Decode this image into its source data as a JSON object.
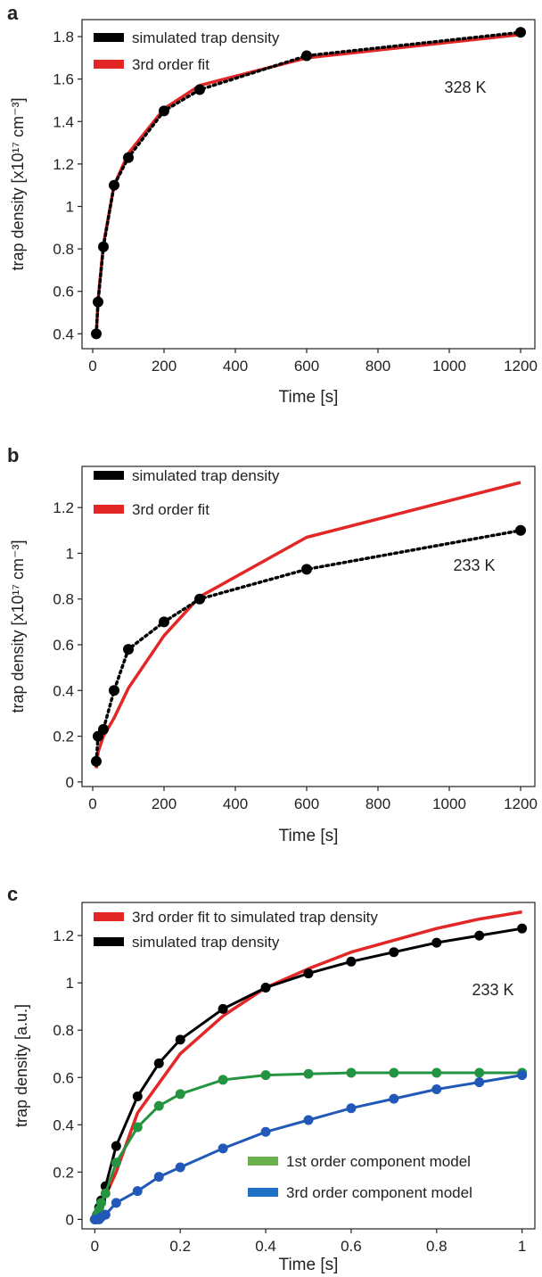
{
  "chart_data": [
    {
      "panel_label": "a",
      "type": "line",
      "xlabel": "Time [s]",
      "ylabel": "trap density [x10¹⁷ cm⁻³]",
      "annotation": "328 K",
      "xlim": [
        -30,
        1240
      ],
      "ylim": [
        0.33,
        1.88
      ],
      "xticks": [
        0,
        200,
        400,
        600,
        800,
        1000,
        1200
      ],
      "xtick_labels": [
        "0",
        "200",
        "400",
        "600",
        "800",
        "1000",
        "1200"
      ],
      "yticks": [
        0.4,
        0.6,
        0.8,
        1.0,
        1.2,
        1.4,
        1.6,
        1.8
      ],
      "ytick_labels": [
        "0.4",
        "0.6",
        "0.8",
        "1",
        "1.2",
        "1.4",
        "1.6",
        "1.8"
      ],
      "legend_position": "top-left",
      "series": [
        {
          "name": "simulated trap density",
          "color": "#000000",
          "style": "dotted-markers",
          "x": [
            10,
            15,
            30,
            60,
            100,
            200,
            300,
            600,
            1200
          ],
          "y": [
            0.4,
            0.55,
            0.81,
            1.1,
            1.23,
            1.45,
            1.55,
            1.71,
            1.82
          ]
        },
        {
          "name": "3rd order fit",
          "color": "#e32626",
          "style": "solid",
          "x": [
            10,
            15,
            30,
            60,
            100,
            200,
            300,
            600,
            1200
          ],
          "y": [
            0.39,
            0.56,
            0.82,
            1.1,
            1.25,
            1.46,
            1.57,
            1.7,
            1.81
          ]
        }
      ]
    },
    {
      "panel_label": "b",
      "type": "line",
      "xlabel": "Time [s]",
      "ylabel": "trap density [x10¹⁷ cm⁻³]",
      "annotation": "233 K",
      "xlim": [
        -30,
        1240
      ],
      "ylim": [
        -0.02,
        1.38
      ],
      "xticks": [
        0,
        200,
        400,
        600,
        800,
        1000,
        1200
      ],
      "xtick_labels": [
        "0",
        "200",
        "400",
        "600",
        "800",
        "1000",
        "1200"
      ],
      "yticks": [
        0,
        0.2,
        0.4,
        0.6,
        0.8,
        1.0,
        1.2
      ],
      "ytick_labels": [
        "0",
        "0.2",
        "0.4",
        "0.6",
        "0.8",
        "1",
        "1.2"
      ],
      "legend_position": "top-left",
      "series": [
        {
          "name": "simulated trap density",
          "color": "#000000",
          "style": "dotted-markers",
          "x": [
            10,
            15,
            30,
            60,
            100,
            200,
            300,
            600,
            1200
          ],
          "y": [
            0.09,
            0.2,
            0.23,
            0.4,
            0.58,
            0.7,
            0.8,
            0.93,
            1.1
          ]
        },
        {
          "name": "3rd order fit",
          "color": "#e32626",
          "style": "solid",
          "x": [
            10,
            15,
            30,
            60,
            100,
            200,
            300,
            600,
            1200
          ],
          "y": [
            0.06,
            0.13,
            0.2,
            0.28,
            0.41,
            0.64,
            0.81,
            1.07,
            1.31
          ]
        }
      ]
    },
    {
      "panel_label": "c",
      "type": "line",
      "xlabel": "Time [s]",
      "ylabel": "trap density [a.u.]",
      "annotation": "233 K",
      "xlim": [
        -0.03,
        1.03
      ],
      "ylim": [
        -0.04,
        1.34
      ],
      "xticks": [
        0,
        0.2,
        0.4,
        0.6,
        0.8,
        1.0
      ],
      "xtick_labels": [
        "0",
        "0.2",
        "0.4",
        "0.6",
        "0.8",
        "1"
      ],
      "yticks": [
        0,
        0.2,
        0.4,
        0.6,
        0.8,
        1.0,
        1.2
      ],
      "ytick_labels": [
        "0",
        "0.2",
        "0.4",
        "0.6",
        "0.8",
        "1",
        "1.2"
      ],
      "legend_position": "top-left and bottom-right",
      "series": [
        {
          "name": "3rd order fit to simulated trap density",
          "color": "#e32626",
          "style": "solid",
          "x": [
            0,
            0.01,
            0.025,
            0.05,
            0.1,
            0.2,
            0.3,
            0.4,
            0.5,
            0.6,
            0.7,
            0.8,
            0.9,
            1.0
          ],
          "y": [
            0,
            0.04,
            0.1,
            0.2,
            0.45,
            0.7,
            0.86,
            0.98,
            1.06,
            1.13,
            1.18,
            1.23,
            1.27,
            1.3
          ]
        },
        {
          "name": "simulated trap density",
          "color": "#000000",
          "style": "solid-markers",
          "x": [
            0,
            0.005,
            0.01,
            0.015,
            0.025,
            0.05,
            0.1,
            0.15,
            0.2,
            0.3,
            0.4,
            0.5,
            0.6,
            0.7,
            0.8,
            0.9,
            1.0
          ],
          "y": [
            0,
            0.02,
            0.05,
            0.08,
            0.14,
            0.31,
            0.52,
            0.66,
            0.76,
            0.89,
            0.98,
            1.04,
            1.09,
            1.13,
            1.17,
            1.2,
            1.23
          ]
        },
        {
          "name": "1st order component model",
          "color": "#259441",
          "legend_color": "#6ab04c",
          "style": "solid-markers",
          "x": [
            0,
            0.005,
            0.01,
            0.015,
            0.025,
            0.05,
            0.1,
            0.15,
            0.2,
            0.3,
            0.4,
            0.5,
            0.6,
            0.7,
            0.8,
            0.9,
            1.0
          ],
          "y": [
            0,
            0.02,
            0.04,
            0.07,
            0.11,
            0.24,
            0.39,
            0.48,
            0.53,
            0.59,
            0.61,
            0.615,
            0.62,
            0.62,
            0.62,
            0.62,
            0.62
          ]
        },
        {
          "name": "3rd order component model",
          "color": "#2259b8",
          "legend_color": "#1f6fc4",
          "style": "solid-markers",
          "x": [
            0,
            0.005,
            0.01,
            0.015,
            0.025,
            0.05,
            0.1,
            0.15,
            0.2,
            0.3,
            0.4,
            0.5,
            0.6,
            0.7,
            0.8,
            0.9,
            1.0
          ],
          "y": [
            0,
            0.0,
            0.0,
            0.01,
            0.02,
            0.07,
            0.12,
            0.18,
            0.22,
            0.3,
            0.37,
            0.42,
            0.47,
            0.51,
            0.55,
            0.58,
            0.61
          ]
        }
      ]
    }
  ]
}
